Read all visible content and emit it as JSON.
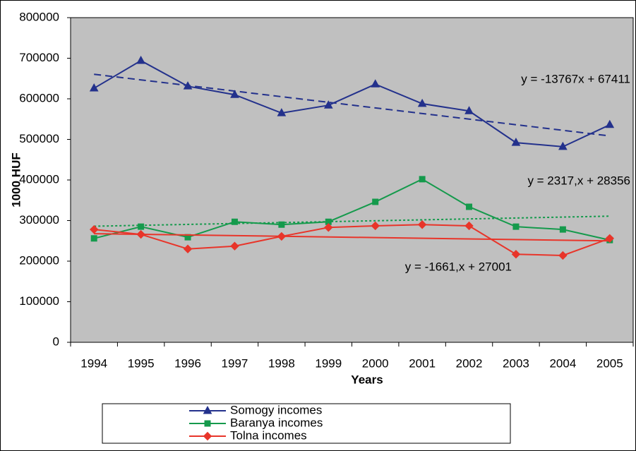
{
  "chart_data": {
    "type": "line",
    "x_label": "Years",
    "y_label": "1000 HUF",
    "categories": [
      "1994",
      "1995",
      "1996",
      "1997",
      "1998",
      "1999",
      "2000",
      "2001",
      "2002",
      "2003",
      "2004",
      "2005"
    ],
    "series": [
      {
        "name": "Somogy incomes",
        "color": "#23318c",
        "marker": "triangle",
        "trend_dash": "10 6",
        "values": [
          626000,
          694000,
          631000,
          610000,
          565000,
          584000,
          636000,
          588000,
          570000,
          492000,
          482000,
          536000
        ]
      },
      {
        "name": "Baranya incomes",
        "color": "#159a4c",
        "marker": "square",
        "trend_dash": "3 3",
        "values": [
          256000,
          285000,
          259000,
          297000,
          290000,
          297000,
          346000,
          402000,
          334000,
          285000,
          278000,
          252000
        ]
      },
      {
        "name": "Tolna incomes",
        "color": "#e8352a",
        "marker": "diamond",
        "trend_dash": "none",
        "values": [
          278000,
          266000,
          230000,
          237000,
          261000,
          283000,
          287000,
          290000,
          287000,
          217000,
          214000,
          256000
        ]
      }
    ],
    "trend_equations": [
      "y = -13767x + 67411",
      "y = 2317,x + 28356",
      "y = -1661,x + 27001"
    ],
    "ylim": [
      0,
      800000
    ],
    "yticks": [
      0,
      100000,
      200000,
      300000,
      400000,
      500000,
      600000,
      700000,
      800000
    ],
    "plot_background": "#c0c0c0"
  }
}
